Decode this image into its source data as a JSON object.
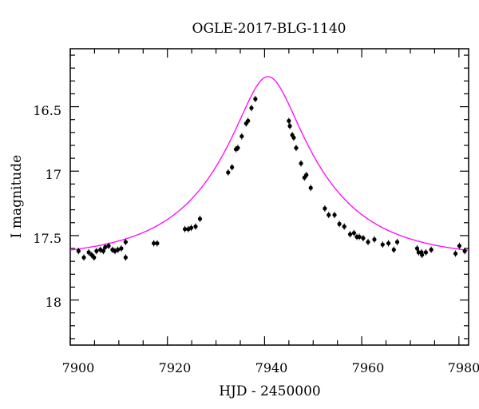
{
  "chart_data": {
    "type": "scatter",
    "title": "OGLE-2017-BLG-1140",
    "xlabel": "HJD - 2450000",
    "ylabel": "I magnitude",
    "xlim": [
      7900,
      7982
    ],
    "ylim": [
      18.35,
      16.05
    ],
    "y_inverted": true,
    "grid": false,
    "x_ticks": [
      "7900",
      "7920",
      "7940",
      "7960",
      "7980"
    ],
    "y_ticks": [
      "16.5",
      "17",
      "17.5",
      "18"
    ],
    "series": [
      {
        "kind": "points",
        "color": "#000000",
        "points": [
          [
            7901.7,
            17.62
          ],
          [
            7902.8,
            17.67
          ],
          [
            7903.8,
            17.63
          ],
          [
            7904.4,
            17.65
          ],
          [
            7904.9,
            17.67
          ],
          [
            7905.4,
            17.62
          ],
          [
            7906.2,
            17.61
          ],
          [
            7906.8,
            17.62
          ],
          [
            7907.2,
            17.59
          ],
          [
            7907.9,
            17.58
          ],
          [
            7908.7,
            17.61
          ],
          [
            7909.2,
            17.62
          ],
          [
            7909.8,
            17.61
          ],
          [
            7910.5,
            17.6
          ],
          [
            7911.4,
            17.55
          ],
          [
            7911.4,
            17.67
          ],
          [
            7917.2,
            17.56
          ],
          [
            7917.9,
            17.56
          ],
          [
            7923.6,
            17.45
          ],
          [
            7924.3,
            17.45
          ],
          [
            7924.9,
            17.44
          ],
          [
            7925.8,
            17.43
          ],
          [
            7926.7,
            17.37
          ],
          [
            7932.5,
            17.01
          ],
          [
            7933.3,
            16.97
          ],
          [
            7934.1,
            16.83
          ],
          [
            7934.5,
            16.82
          ],
          [
            7935.3,
            16.73
          ],
          [
            7936.2,
            16.63
          ],
          [
            7936.6,
            16.61
          ],
          [
            7937.3,
            16.51
          ],
          [
            7938.1,
            16.44
          ],
          [
            7945.0,
            16.61
          ],
          [
            7945.2,
            16.65
          ],
          [
            7945.7,
            16.72
          ],
          [
            7946.0,
            16.74
          ],
          [
            7946.5,
            16.82
          ],
          [
            7947.5,
            16.94
          ],
          [
            7948.2,
            17.05
          ],
          [
            7948.6,
            17.03
          ],
          [
            7949.5,
            17.13
          ],
          [
            7952.4,
            17.29
          ],
          [
            7953.2,
            17.34
          ],
          [
            7954.4,
            17.34
          ],
          [
            7955.4,
            17.41
          ],
          [
            7956.4,
            17.43
          ],
          [
            7957.6,
            17.49
          ],
          [
            7958.4,
            17.48
          ],
          [
            7959.0,
            17.51
          ],
          [
            7959.5,
            17.51
          ],
          [
            7960.3,
            17.52
          ],
          [
            7961.3,
            17.55
          ],
          [
            7962.6,
            17.53
          ],
          [
            7964.3,
            17.57
          ],
          [
            7965.5,
            17.56
          ],
          [
            7966.6,
            17.61
          ],
          [
            7967.3,
            17.55
          ],
          [
            7971.4,
            17.6
          ],
          [
            7971.7,
            17.63
          ],
          [
            7972.3,
            17.63
          ],
          [
            7972.4,
            17.65
          ],
          [
            7973.2,
            17.63
          ],
          [
            7974.3,
            17.61
          ],
          [
            7979.3,
            17.64
          ],
          [
            7980.1,
            17.58
          ],
          [
            7981.2,
            17.62
          ]
        ]
      },
      {
        "kind": "model_curve",
        "color": "#ff00ff",
        "model": {
          "t0": 7940.7,
          "u0": 0.28,
          "tE": 21.0,
          "I_base": 17.68
        }
      }
    ]
  }
}
